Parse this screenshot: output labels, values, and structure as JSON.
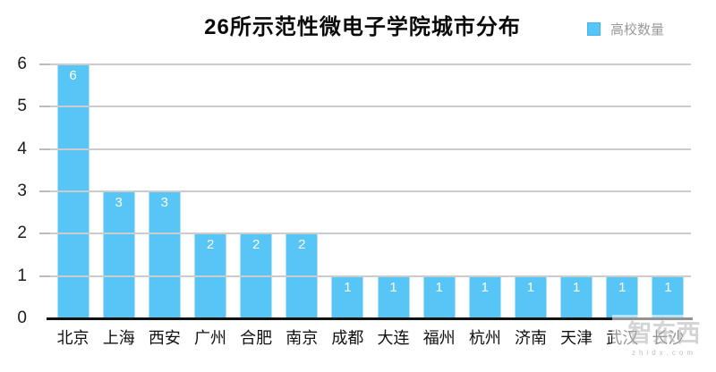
{
  "title": "26所示范性微电子学院城市分布",
  "legend": {
    "label": "高校数量",
    "swatch_color": "#57C5F5"
  },
  "colors": {
    "bar": "#57C5F5",
    "gridline": "#cccccc",
    "axis_line": "#111111",
    "value_label": "#ffffff",
    "legend_text": "#9a9a9a"
  },
  "watermark": {
    "logo_text": "智东西",
    "sub_text": "zhidx.com"
  },
  "chart_data": {
    "type": "bar",
    "title": "26所示范性微电子学院城市分布",
    "categories": [
      "北京",
      "上海",
      "西安",
      "广州",
      "合肥",
      "南京",
      "成都",
      "大连",
      "福州",
      "杭州",
      "济南",
      "天津",
      "武汉",
      "长沙"
    ],
    "series": [
      {
        "name": "高校数量",
        "values": [
          6,
          3,
          3,
          2,
          2,
          2,
          1,
          1,
          1,
          1,
          1,
          1,
          1,
          1
        ]
      }
    ],
    "value_labels_shown": true,
    "value_label_position": "inside-top",
    "xlabel": "",
    "ylabel": "",
    "ylim": [
      0,
      6
    ],
    "yticks": [
      0,
      1,
      2,
      3,
      4,
      5,
      6
    ],
    "grid": true,
    "legend_position": "top-right",
    "bar_color": "#57C5F5"
  }
}
